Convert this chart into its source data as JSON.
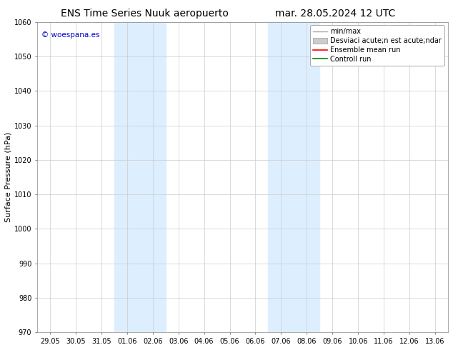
{
  "title_left": "ENS Time Series Nuuk aeropuerto",
  "title_right": "mar. 28.05.2024 12 UTC",
  "ylabel": "Surface Pressure (hPa)",
  "ylim": [
    970,
    1060
  ],
  "yticks": [
    970,
    980,
    990,
    1000,
    1010,
    1020,
    1030,
    1040,
    1050,
    1060
  ],
  "xtick_labels": [
    "29.05",
    "30.05",
    "31.05",
    "01.06",
    "02.06",
    "03.06",
    "04.06",
    "05.06",
    "06.06",
    "07.06",
    "08.06",
    "09.06",
    "10.06",
    "11.06",
    "12.06",
    "13.06"
  ],
  "shaded_regions": [
    {
      "xstart": 3,
      "xend": 5,
      "color": "#ddeeff"
    },
    {
      "xstart": 9,
      "xend": 11,
      "color": "#ddeeff"
    }
  ],
  "legend_label_minmax": "min/max",
  "legend_label_std": "Desviaci acute;n est acute;ndar",
  "legend_label_ensemble": "Ensemble mean run",
  "legend_label_control": "Controll run",
  "legend_color_minmax": "#aaaaaa",
  "legend_color_std": "#cccccc",
  "legend_color_ensemble": "#ff0000",
  "legend_color_control": "#008800",
  "copyright_text": "© woespana.es",
  "copyright_color": "#0000cc",
  "bg_color": "#ffffff",
  "plot_bg_color": "#ffffff",
  "grid_color": "#cccccc",
  "title_fontsize": 10,
  "label_fontsize": 8,
  "tick_fontsize": 7,
  "legend_fontsize": 7
}
